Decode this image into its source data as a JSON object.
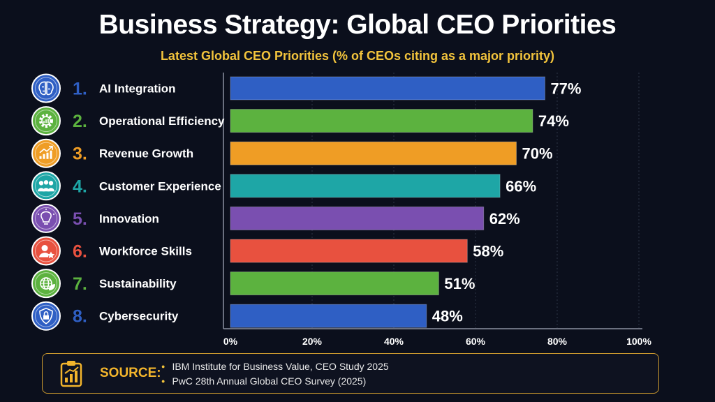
{
  "header": {
    "title": "Business Strategy: Global CEO Priorities",
    "subtitle": "Latest Global CEO Priorities (% of CEOs citing as a major priority)"
  },
  "chart_data": {
    "type": "bar",
    "orientation": "horizontal",
    "title": "Business Strategy: Global CEO Priorities",
    "subtitle": "Latest Global CEO Priorities (% of CEOs citing as a major priority)",
    "categories": [
      "AI Integration",
      "Operational Efficiency",
      "Revenue Growth",
      "Customer Experience",
      "Innovation",
      "Workforce Skills",
      "Sustainability",
      "Cybersecurity"
    ],
    "ranks": [
      "1.",
      "2.",
      "3.",
      "4.",
      "5.",
      "6.",
      "7.",
      "8."
    ],
    "values": [
      77,
      74,
      70,
      66,
      62,
      58,
      51,
      48
    ],
    "value_labels": [
      "77%",
      "74%",
      "70%",
      "66%",
      "62%",
      "58%",
      "51%",
      "48%"
    ],
    "colors": [
      "#2f5fc4",
      "#5cb23f",
      "#ef9d25",
      "#1ea6a6",
      "#7a4fb0",
      "#e8513f",
      "#5cb23f",
      "#2f5fc4"
    ],
    "icons": [
      "brain-icon",
      "gear-chart-icon",
      "growth-chart-icon",
      "people-icon",
      "lightbulb-icon",
      "person-star-icon",
      "globe-leaf-icon",
      "shield-lock-icon"
    ],
    "xlim": [
      0,
      100
    ],
    "xticks": [
      "0%",
      "20%",
      "40%",
      "60%",
      "80%",
      "100%"
    ],
    "xlabel": "",
    "ylabel": "",
    "grid": true
  },
  "source": {
    "label": "SOURCE:",
    "items": [
      "IBM Institute for Business Value, CEO Study 2025",
      "PwC 28th Annual Global CEO Survey (2025)"
    ],
    "icon": "clipboard-chart-icon"
  }
}
